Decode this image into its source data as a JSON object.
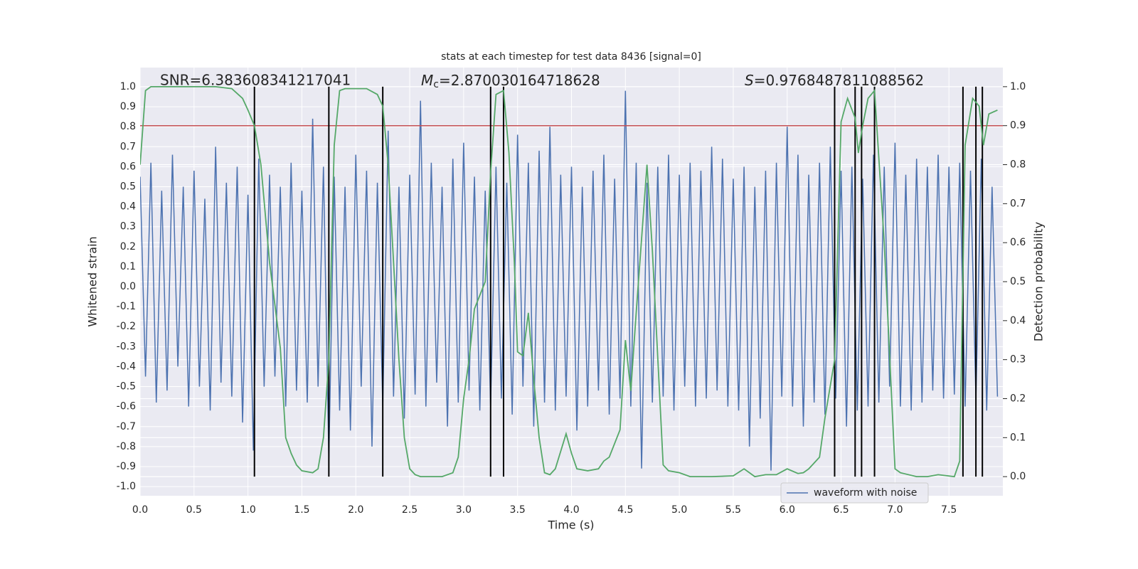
{
  "chart_data": {
    "type": "line",
    "title": "stats at each timestep for test data 8436 [signal=0]",
    "x_label": "Time (s)",
    "y_label": "Whitened strain",
    "y2_label": "Detection probability",
    "annotations": [
      {
        "text": "SNR=6.383608341217041"
      },
      {
        "symbol": "M",
        "subscript": "c",
        "text": "=2.870030164718628"
      },
      {
        "symbol": "S",
        "text": "=0.9768487811088562"
      }
    ],
    "xlim": [
      0,
      8.0
    ],
    "ylim": [
      -1.046,
      1.096
    ],
    "y2lim": [
      -0.049,
      1.049
    ],
    "xticks": [
      {
        "value": 0,
        "label": "0.0"
      },
      {
        "value": 0.5,
        "label": "0.5"
      },
      {
        "value": 1,
        "label": "1.0"
      },
      {
        "value": 1.5,
        "label": "1.5"
      },
      {
        "value": 2,
        "label": "2.0"
      },
      {
        "value": 2.5,
        "label": "2.5"
      },
      {
        "value": 3,
        "label": "3.0"
      },
      {
        "value": 3.5,
        "label": "3.5"
      },
      {
        "value": 4,
        "label": "4.0"
      },
      {
        "value": 4.5,
        "label": "4.5"
      },
      {
        "value": 5,
        "label": "5.0"
      },
      {
        "value": 5.5,
        "label": "5.5"
      },
      {
        "value": 6,
        "label": "6.0"
      },
      {
        "value": 6.5,
        "label": "6.5"
      },
      {
        "value": 7,
        "label": "7.0"
      },
      {
        "value": 7.5,
        "label": "7.5"
      }
    ],
    "yticks": [
      {
        "value": 1,
        "label": "1.0"
      },
      {
        "value": 0.9,
        "label": "0.9"
      },
      {
        "value": 0.8,
        "label": "0.8"
      },
      {
        "value": 0.7,
        "label": "0.7"
      },
      {
        "value": 0.6,
        "label": "0.6"
      },
      {
        "value": 0.5,
        "label": "0.5"
      },
      {
        "value": 0.4,
        "label": "0.4"
      },
      {
        "value": 0.3,
        "label": "0.3"
      },
      {
        "value": 0.2,
        "label": "0.2"
      },
      {
        "value": 0.1,
        "label": "0.1"
      },
      {
        "value": 0,
        "label": "0.0"
      },
      {
        "value": -0.1,
        "label": "-0.1"
      },
      {
        "value": -0.2,
        "label": "-0.2"
      },
      {
        "value": -0.3,
        "label": "-0.3"
      },
      {
        "value": -0.4,
        "label": "-0.4"
      },
      {
        "value": -0.5,
        "label": "-0.5"
      },
      {
        "value": -0.6,
        "label": "-0.6"
      },
      {
        "value": -0.7,
        "label": "-0.7"
      },
      {
        "value": -0.8,
        "label": "-0.8"
      },
      {
        "value": -0.9,
        "label": "-0.9"
      },
      {
        "value": -1,
        "label": "-1.0"
      }
    ],
    "y2ticks": [
      {
        "value": 1,
        "label": "1.0"
      },
      {
        "value": 0.9,
        "label": "0.9"
      },
      {
        "value": 0.8,
        "label": "0.8"
      },
      {
        "value": 0.7,
        "label": "0.7"
      },
      {
        "value": 0.6,
        "label": "0.6"
      },
      {
        "value": 0.5,
        "label": "0.5"
      },
      {
        "value": 0.4,
        "label": "0.4"
      },
      {
        "value": 0.3,
        "label": "0.3"
      },
      {
        "value": 0.2,
        "label": "0.2"
      },
      {
        "value": 0.1,
        "label": "0.1"
      },
      {
        "value": 0,
        "label": "0.0"
      }
    ],
    "grid": true,
    "legend": "lower right",
    "threshold": {
      "value": 0.9,
      "axis": "y2",
      "color": "#c44e52"
    },
    "vlines": {
      "x": [
        1.06,
        1.75,
        2.25,
        3.25,
        3.37,
        6.44,
        6.63,
        6.69,
        6.81,
        7.63,
        7.75,
        7.81
      ],
      "span": [
        0,
        1
      ],
      "axis": "y2",
      "color": "#000000"
    },
    "series": [
      {
        "name": "waveform with noise",
        "color": "#4c72b0",
        "x": [
          0,
          0.05,
          0.1,
          0.15,
          0.2,
          0.25,
          0.3,
          0.35,
          0.4,
          0.45,
          0.5,
          0.55,
          0.6,
          0.65,
          0.7,
          0.75,
          0.8,
          0.85,
          0.9,
          0.95,
          1,
          1.05,
          1.1,
          1.15,
          1.2,
          1.25,
          1.3,
          1.35,
          1.4,
          1.45,
          1.5,
          1.55,
          1.6,
          1.65,
          1.7,
          1.75,
          1.8,
          1.85,
          1.9,
          1.95,
          2,
          2.05,
          2.1,
          2.15,
          2.2,
          2.25,
          2.3,
          2.35,
          2.4,
          2.45,
          2.5,
          2.55,
          2.6,
          2.65,
          2.7,
          2.75,
          2.8,
          2.85,
          2.9,
          2.95,
          3,
          3.05,
          3.1,
          3.15,
          3.2,
          3.25,
          3.3,
          3.35,
          3.4,
          3.45,
          3.5,
          3.55,
          3.6,
          3.65,
          3.7,
          3.75,
          3.8,
          3.85,
          3.9,
          3.95,
          4,
          4.05,
          4.1,
          4.15,
          4.2,
          4.25,
          4.3,
          4.35,
          4.4,
          4.45,
          4.5,
          4.55,
          4.6,
          4.65,
          4.7,
          4.75,
          4.8,
          4.85,
          4.9,
          4.95,
          5,
          5.05,
          5.1,
          5.15,
          5.2,
          5.25,
          5.3,
          5.35,
          5.4,
          5.45,
          5.5,
          5.55,
          5.6,
          5.65,
          5.7,
          5.75,
          5.8,
          5.85,
          5.9,
          5.95,
          6,
          6.05,
          6.1,
          6.15,
          6.2,
          6.25,
          6.3,
          6.35,
          6.4,
          6.45,
          6.5,
          6.55,
          6.6,
          6.65,
          6.7,
          6.75,
          6.8,
          6.85,
          6.9,
          6.95,
          7,
          7.05,
          7.1,
          7.15,
          7.2,
          7.25,
          7.3,
          7.35,
          7.4,
          7.45,
          7.5,
          7.55,
          7.6,
          7.65,
          7.7,
          7.75,
          7.8,
          7.85,
          7.9,
          7.95
        ],
        "values": [
          0.55,
          -0.45,
          0.62,
          -0.58,
          0.48,
          -0.52,
          0.66,
          -0.4,
          0.5,
          -0.6,
          0.58,
          -0.5,
          0.44,
          -0.62,
          0.7,
          -0.48,
          0.52,
          -0.55,
          0.6,
          -0.68,
          0.46,
          -0.82,
          0.64,
          -0.5,
          0.56,
          -0.45,
          0.5,
          -0.6,
          0.62,
          -0.52,
          0.48,
          -0.58,
          0.84,
          -0.5,
          0.6,
          -0.86,
          0.55,
          -0.62,
          0.5,
          -0.72,
          0.66,
          -0.5,
          0.58,
          -0.8,
          0.52,
          -0.6,
          0.78,
          -0.55,
          0.5,
          -0.66,
          0.56,
          -0.54,
          0.93,
          -0.6,
          0.62,
          -0.48,
          0.5,
          -0.7,
          0.64,
          -0.58,
          0.72,
          -0.52,
          0.55,
          -0.62,
          0.48,
          -0.6,
          0.6,
          -0.56,
          0.52,
          -0.64,
          0.76,
          -0.5,
          0.62,
          -0.7,
          0.68,
          -0.58,
          0.8,
          -0.62,
          0.56,
          -0.55,
          0.6,
          -0.72,
          0.5,
          -0.6,
          0.58,
          -0.52,
          0.66,
          -0.64,
          0.54,
          -0.56,
          0.98,
          -0.6,
          0.62,
          -0.91,
          0.52,
          -0.58,
          0.6,
          -0.55,
          0.66,
          -0.62,
          0.56,
          -0.5,
          0.62,
          -0.6,
          0.58,
          -0.56,
          0.7,
          -0.52,
          0.64,
          -0.6,
          0.54,
          -0.62,
          0.6,
          -0.8,
          0.5,
          -0.66,
          0.58,
          -0.92,
          0.62,
          -0.55,
          0.8,
          -0.6,
          0.66,
          -0.7,
          0.56,
          -0.58,
          0.62,
          -0.64,
          0.7,
          -0.56,
          0.58,
          -0.7,
          0.6,
          -0.62,
          0.54,
          -0.6,
          0.66,
          -0.58,
          0.6,
          -0.5,
          0.72,
          -0.6,
          0.56,
          -0.62,
          0.64,
          -0.58,
          0.6,
          -0.52,
          0.66,
          -0.56,
          0.6,
          -0.54,
          0.62,
          -0.6,
          0.58,
          -0.56,
          0.64,
          -0.62,
          0.5,
          -0.55
        ]
      },
      {
        "color": "#55a868",
        "axis": "y2",
        "x": [
          0,
          0.05,
          0.1,
          0.3,
          0.5,
          0.7,
          0.85,
          0.95,
          1,
          1.06,
          1.12,
          1.2,
          1.3,
          1.35,
          1.4,
          1.45,
          1.5,
          1.6,
          1.65,
          1.7,
          1.75,
          1.8,
          1.85,
          1.9,
          2,
          2.1,
          2.2,
          2.25,
          2.3,
          2.4,
          2.45,
          2.5,
          2.55,
          2.6,
          2.7,
          2.8,
          2.9,
          2.95,
          3,
          3.05,
          3.1,
          3.2,
          3.25,
          3.3,
          3.37,
          3.42,
          3.47,
          3.5,
          3.55,
          3.6,
          3.65,
          3.7,
          3.75,
          3.8,
          3.85,
          3.95,
          4,
          4.05,
          4.15,
          4.25,
          4.3,
          4.35,
          4.45,
          4.5,
          4.55,
          4.6,
          4.7,
          4.75,
          4.85,
          4.9,
          5,
          5.1,
          5.3,
          5.5,
          5.6,
          5.65,
          5.7,
          5.8,
          5.9,
          6,
          6.1,
          6.15,
          6.2,
          6.3,
          6.35,
          6.44,
          6.5,
          6.56,
          6.63,
          6.66,
          6.7,
          6.75,
          6.81,
          6.9,
          7,
          7.05,
          7.2,
          7.3,
          7.4,
          7.55,
          7.6,
          7.65,
          7.72,
          7.78,
          7.82,
          7.87,
          7.95
        ],
        "values": [
          0.8,
          0.99,
          1,
          1,
          1,
          1,
          0.995,
          0.97,
          0.94,
          0.9,
          0.8,
          0.55,
          0.33,
          0.1,
          0.06,
          0.03,
          0.015,
          0.01,
          0.02,
          0.1,
          0.3,
          0.85,
          0.99,
          0.995,
          0.995,
          0.995,
          0.98,
          0.95,
          0.8,
          0.3,
          0.1,
          0.02,
          0.005,
          0,
          0,
          0,
          0.01,
          0.05,
          0.2,
          0.3,
          0.43,
          0.5,
          0.78,
          0.98,
          0.99,
          0.83,
          0.55,
          0.32,
          0.31,
          0.42,
          0.25,
          0.1,
          0.01,
          0.005,
          0.02,
          0.11,
          0.06,
          0.02,
          0.015,
          0.02,
          0.04,
          0.05,
          0.12,
          0.35,
          0.22,
          0.42,
          0.8,
          0.58,
          0.03,
          0.015,
          0.01,
          0,
          0,
          0.002,
          0.02,
          0.01,
          0,
          0.005,
          0.005,
          0.02,
          0.008,
          0.01,
          0.02,
          0.05,
          0.15,
          0.3,
          0.91,
          0.97,
          0.92,
          0.83,
          0.9,
          0.97,
          0.99,
          0.6,
          0.02,
          0.01,
          0,
          0,
          0.005,
          0,
          0.04,
          0.85,
          0.97,
          0.95,
          0.85,
          0.93,
          0.94
        ]
      }
    ]
  }
}
